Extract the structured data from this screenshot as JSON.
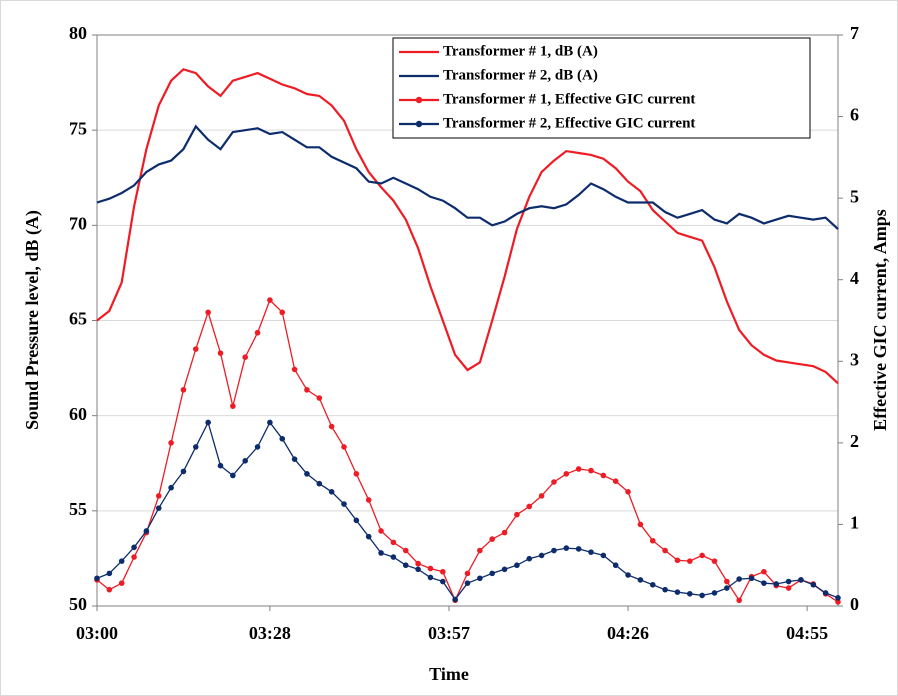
{
  "chart_data": {
    "type": "line",
    "xlabel": "Time",
    "ylabel": "Sound Pressure level, dB (A)",
    "y2label": "Effective GIC current, Amps",
    "x": [
      0,
      2,
      4,
      6,
      8,
      10,
      12,
      14,
      16,
      18,
      20,
      22,
      24,
      26,
      28,
      30,
      32,
      34,
      36,
      38,
      40,
      42,
      44,
      46,
      48,
      50,
      52,
      54,
      56,
      58,
      60,
      62,
      64,
      66,
      68,
      70,
      72,
      74,
      76,
      78,
      80,
      82,
      84,
      86,
      88,
      90,
      92,
      94,
      96,
      98,
      100,
      102,
      104,
      106,
      108,
      110,
      112,
      114,
      116,
      118,
      120
    ],
    "xlim": [
      0,
      120
    ],
    "xticks": [
      {
        "value": 0,
        "label": "03:00"
      },
      {
        "value": 28,
        "label": "03:28"
      },
      {
        "value": 57,
        "label": "03:57"
      },
      {
        "value": 86,
        "label": "04:26"
      },
      {
        "value": 115,
        "label": "04:55"
      }
    ],
    "ylim": [
      50,
      80
    ],
    "yticks": [
      50,
      55,
      60,
      65,
      70,
      75,
      80
    ],
    "y2lim": [
      0,
      7
    ],
    "y2ticks": [
      0,
      1,
      2,
      3,
      4,
      5,
      6,
      7
    ],
    "grid": true,
    "legend": "upper right",
    "series": [
      {
        "name": "Transformer # 1, dB (A)",
        "color": "#ee1c24",
        "axis": "y",
        "values": [
          65.0,
          65.5,
          67.0,
          71.0,
          74.0,
          76.3,
          77.6,
          78.2,
          78.0,
          77.3,
          76.8,
          77.6,
          77.8,
          78.0,
          77.7,
          77.4,
          77.2,
          76.9,
          76.8,
          76.3,
          75.5,
          74.0,
          72.8,
          72.0,
          71.3,
          70.3,
          68.8,
          66.8,
          65.0,
          63.2,
          62.4,
          62.8,
          65.0,
          67.3,
          69.8,
          71.5,
          72.8,
          73.4,
          73.9,
          73.8,
          73.7,
          73.5,
          73.0,
          72.3,
          71.8,
          70.8,
          70.2,
          69.6,
          69.4,
          69.2,
          67.8,
          66.0,
          64.5,
          63.7,
          63.2,
          62.9,
          62.8,
          62.7,
          62.6,
          62.3,
          61.7
        ]
      },
      {
        "name": "Transformer # 2, dB (A)",
        "color": "#0d2c6c",
        "axis": "y",
        "values": [
          71.2,
          71.4,
          71.7,
          72.1,
          72.8,
          73.2,
          73.4,
          74.0,
          75.2,
          74.5,
          74.0,
          74.9,
          75.0,
          75.1,
          74.8,
          74.9,
          74.5,
          74.1,
          74.1,
          73.6,
          73.3,
          73.0,
          72.3,
          72.2,
          72.5,
          72.2,
          71.9,
          71.5,
          71.3,
          70.9,
          70.4,
          70.4,
          70.0,
          70.2,
          70.6,
          70.9,
          71.0,
          70.9,
          71.1,
          71.6,
          72.2,
          71.9,
          71.5,
          71.2,
          71.2,
          71.2,
          70.7,
          70.4,
          70.6,
          70.8,
          70.3,
          70.1,
          70.6,
          70.4,
          70.1,
          70.3,
          70.5,
          70.4,
          70.3,
          70.4,
          69.8
        ]
      },
      {
        "name": "Transformer # 1, Effective GIC current",
        "color": "#ee1c24",
        "axis": "y2",
        "marker": "circle",
        "values": [
          0.32,
          0.2,
          0.28,
          0.6,
          0.9,
          1.35,
          2.0,
          2.65,
          3.15,
          3.6,
          3.1,
          2.45,
          3.05,
          3.35,
          3.75,
          3.6,
          2.9,
          2.65,
          2.55,
          2.2,
          1.95,
          1.62,
          1.3,
          0.92,
          0.78,
          0.68,
          0.52,
          0.46,
          0.42,
          0.07,
          0.4,
          0.68,
          0.82,
          0.9,
          1.12,
          1.22,
          1.35,
          1.52,
          1.62,
          1.68,
          1.66,
          1.6,
          1.53,
          1.4,
          1.0,
          0.8,
          0.68,
          0.56,
          0.55,
          0.62,
          0.55,
          0.3,
          0.07,
          0.36,
          0.42,
          0.25,
          0.22,
          0.32,
          0.27,
          0.15,
          0.05
        ]
      },
      {
        "name": "Transformer # 2, Effective GIC current",
        "color": "#0d2c6c",
        "axis": "y2",
        "marker": "circle",
        "values": [
          0.34,
          0.4,
          0.55,
          0.72,
          0.92,
          1.2,
          1.45,
          1.65,
          1.95,
          2.25,
          1.72,
          1.6,
          1.78,
          1.95,
          2.25,
          2.05,
          1.8,
          1.62,
          1.5,
          1.4,
          1.25,
          1.05,
          0.85,
          0.65,
          0.6,
          0.5,
          0.45,
          0.35,
          0.3,
          0.08,
          0.28,
          0.34,
          0.4,
          0.45,
          0.5,
          0.58,
          0.62,
          0.68,
          0.71,
          0.7,
          0.66,
          0.62,
          0.5,
          0.38,
          0.32,
          0.26,
          0.2,
          0.17,
          0.15,
          0.13,
          0.16,
          0.22,
          0.33,
          0.34,
          0.28,
          0.27,
          0.3,
          0.32,
          0.26,
          0.16,
          0.1
        ]
      }
    ]
  }
}
